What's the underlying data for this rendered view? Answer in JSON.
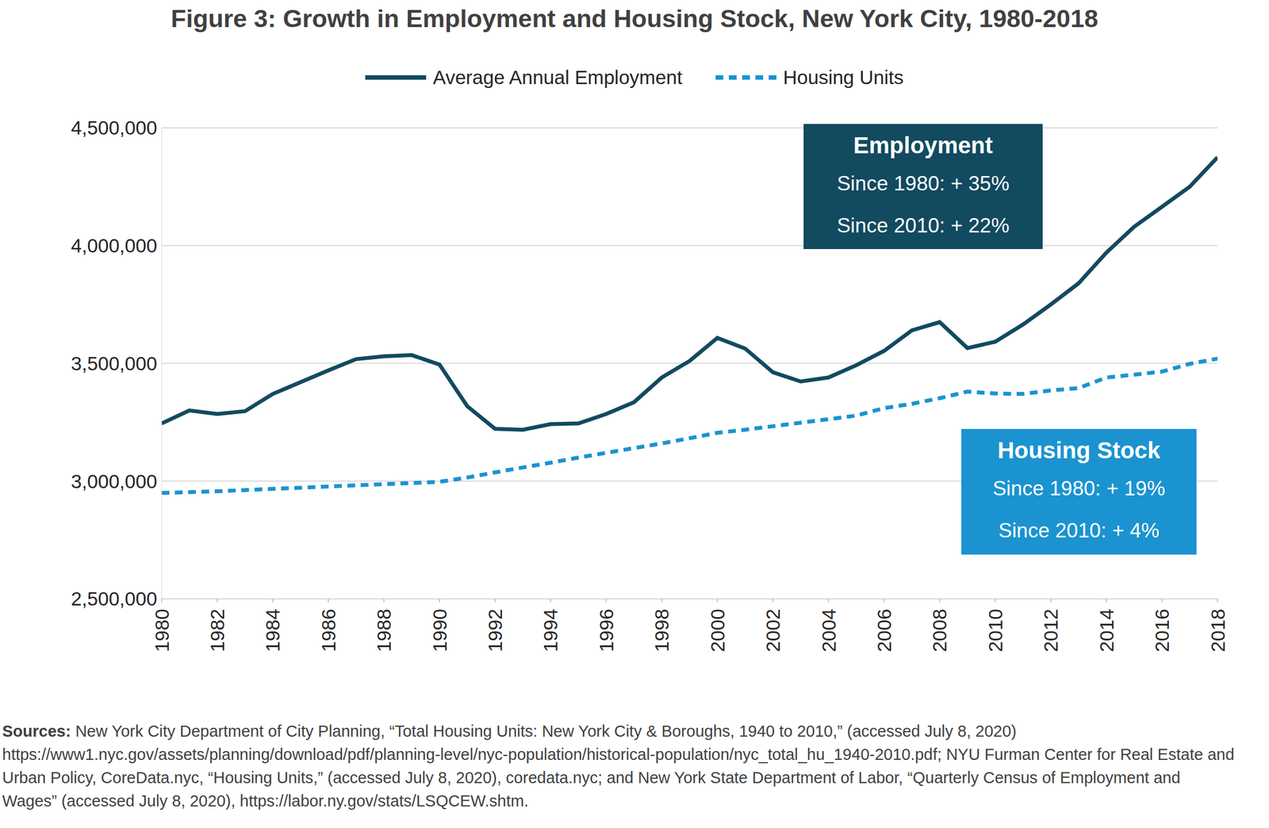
{
  "chart_data": {
    "type": "line",
    "title": "Figure 3: Growth in Employment and Housing Stock, New York City, 1980-2018",
    "x": [
      1980,
      1981,
      1982,
      1983,
      1984,
      1985,
      1986,
      1987,
      1988,
      1989,
      1990,
      1991,
      1992,
      1993,
      1994,
      1995,
      1996,
      1997,
      1998,
      1999,
      2000,
      2001,
      2002,
      2003,
      2004,
      2005,
      2006,
      2007,
      2008,
      2009,
      2010,
      2011,
      2012,
      2013,
      2014,
      2015,
      2016,
      2017,
      2018
    ],
    "series": [
      {
        "name": "Average Annual Employment",
        "color": "#124a60",
        "line_style": "solid",
        "values": [
          3245000,
          3300000,
          3285000,
          3297000,
          3370000,
          3420000,
          3470000,
          3518000,
          3530000,
          3535000,
          3495000,
          3318000,
          3222000,
          3218000,
          3242000,
          3245000,
          3285000,
          3335000,
          3440000,
          3510000,
          3608000,
          3563000,
          3462000,
          3423000,
          3440000,
          3492000,
          3553000,
          3640000,
          3675000,
          3565000,
          3592000,
          3665000,
          3750000,
          3840000,
          3970000,
          4080000,
          4165000,
          4250000,
          4375000
        ]
      },
      {
        "name": "Housing Units",
        "color": "#1a93d0",
        "line_style": "dashed",
        "values": [
          2950000,
          2953000,
          2957000,
          2962000,
          2967000,
          2972000,
          2977000,
          2982000,
          2987000,
          2992000,
          2997000,
          3015000,
          3037000,
          3058000,
          3078000,
          3100000,
          3120000,
          3140000,
          3160000,
          3182000,
          3205000,
          3218000,
          3233000,
          3248000,
          3263000,
          3278000,
          3310000,
          3328000,
          3352000,
          3380000,
          3372000,
          3370000,
          3385000,
          3395000,
          3440000,
          3452000,
          3465000,
          3498000,
          3520000
        ]
      }
    ],
    "xlim": [
      1980,
      2018
    ],
    "xticks": [
      1980,
      1982,
      1984,
      1986,
      1988,
      1990,
      1992,
      1994,
      1996,
      1998,
      2000,
      2002,
      2004,
      2006,
      2008,
      2010,
      2012,
      2014,
      2016,
      2018
    ],
    "ylim": [
      2500000,
      4500000
    ],
    "yticks": [
      {
        "value": 2500000,
        "label": "2,500,000"
      },
      {
        "value": 3000000,
        "label": "3,000,000"
      },
      {
        "value": 3500000,
        "label": "3,500,000"
      },
      {
        "value": 4000000,
        "label": "4,000,000"
      },
      {
        "value": 4500000,
        "label": "4,500,000"
      }
    ],
    "grid": true,
    "legend": "top",
    "annotations": [
      {
        "title": "Employment",
        "lines": [
          "Since 1980: + 35%",
          "Since 2010: + 22%"
        ],
        "color": "#124a60"
      },
      {
        "title": "Housing Stock",
        "lines": [
          "Since 1980: + 19%",
          "Since 2010: + 4%"
        ],
        "color": "#1a93d0"
      }
    ],
    "source": {
      "label": "Sources:",
      "text": "New York City Department of City Planning, “Total Housing Units: New York City & Boroughs, 1940 to 2010,” (accessed July 8, 2020) https://www1.nyc.gov/assets/planning/download/pdf/planning-level/nyc-population/historical-population/nyc_total_hu_1940-2010.pdf; NYU Furman Center for Real Estate and Urban Policy, CoreData.nyc, “Housing Units,” (accessed July 8, 2020), coredata.nyc; and New York State Department of Labor, “Quarterly Census of Employment and Wages” (accessed July 8, 2020), https://labor.ny.gov/stats/LSQCEW.shtm."
    }
  }
}
